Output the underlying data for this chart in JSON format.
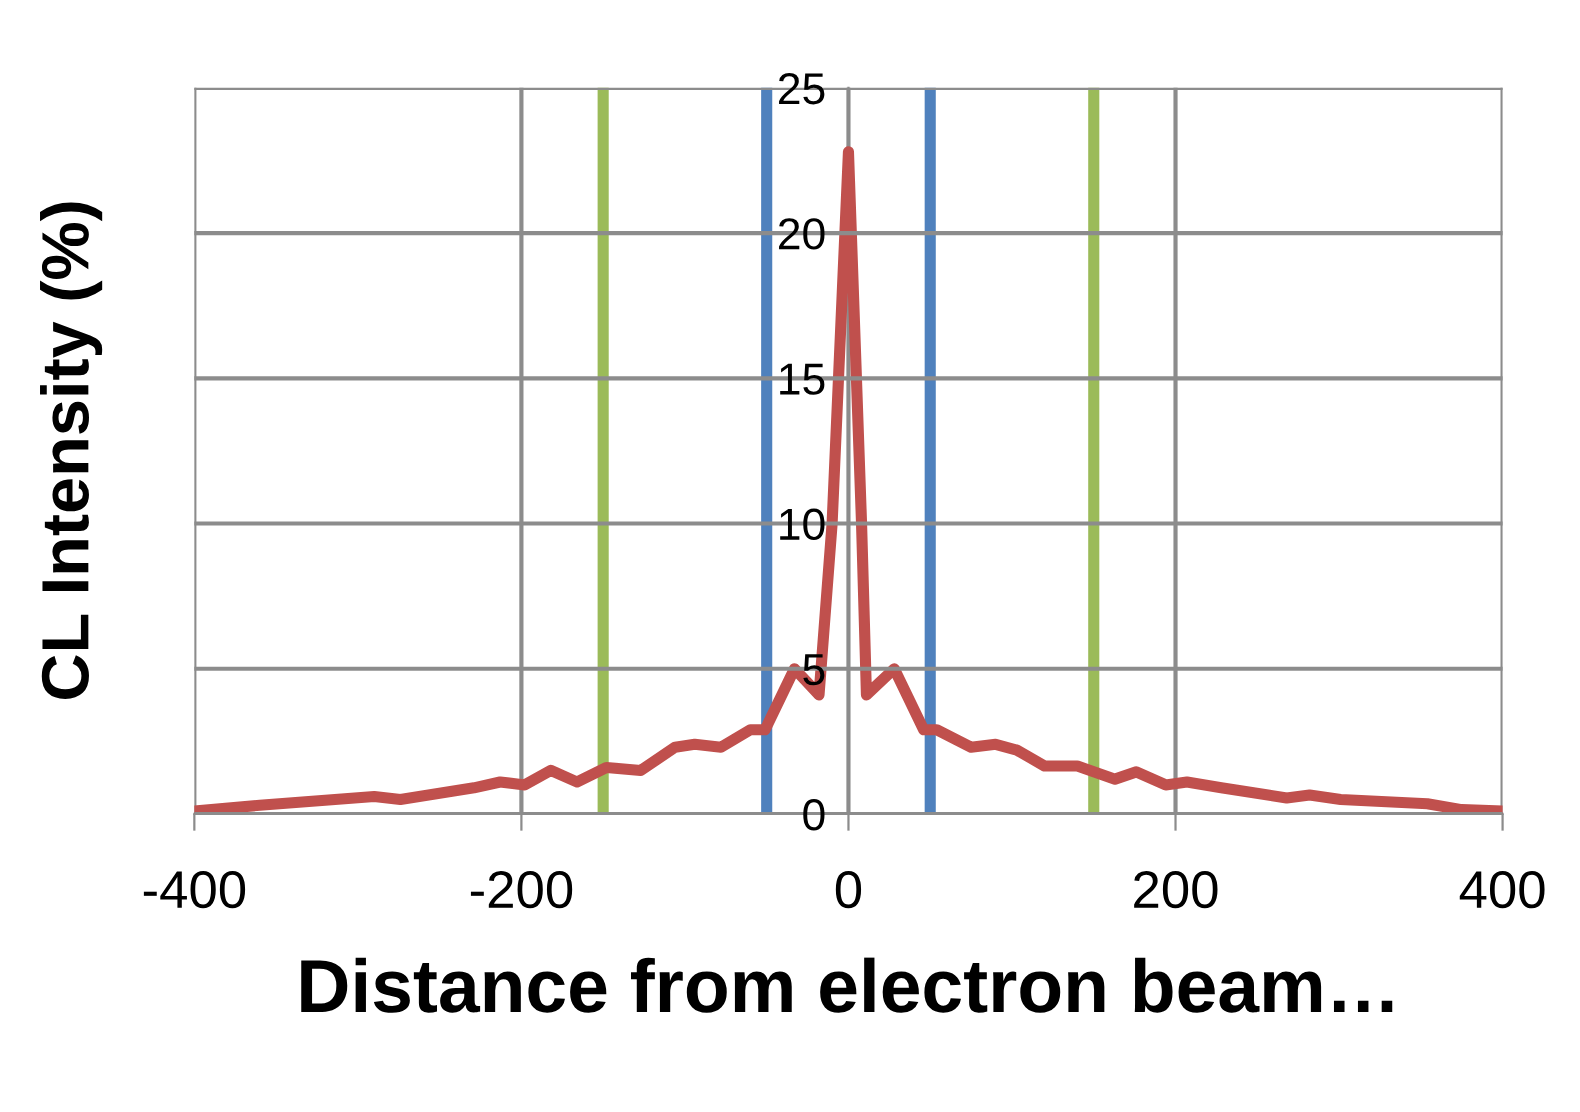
{
  "chart_data": {
    "type": "line",
    "xlabel": "Distance from electron beam…",
    "ylabel": "CL Intensity (%)",
    "series": [
      {
        "color": "#c0504d",
        "x": [
          -400,
          -360,
          -290,
          -274,
          -229,
          -213,
          -198,
          -182,
          -166,
          -148,
          -127,
          -106,
          -94,
          -78,
          -60,
          -51,
          -33,
          -18,
          -10,
          0,
          8,
          11,
          28,
          46,
          54,
          75,
          90,
          103,
          120,
          140,
          163,
          176,
          194,
          207,
          228,
          268,
          282,
          301,
          354,
          375,
          400
        ],
        "values": [
          0.1,
          0.3,
          0.6,
          0.5,
          0.9,
          1.1,
          1.0,
          1.5,
          1.1,
          1.6,
          1.5,
          2.3,
          2.4,
          2.3,
          2.9,
          2.9,
          5.0,
          4.1,
          10,
          22.8,
          10,
          4.1,
          5.0,
          2.9,
          2.9,
          2.3,
          2.4,
          2.2,
          1.65,
          1.65,
          1.2,
          1.45,
          1.0,
          1.1,
          0.9,
          0.55,
          0.65,
          0.5,
          0.35,
          0.15,
          0.1
        ]
      }
    ],
    "ref_lines": [
      {
        "axis": "x",
        "value": -150,
        "color": "#9bbb59"
      },
      {
        "axis": "x",
        "value": -50,
        "color": "#4f81bd"
      },
      {
        "axis": "x",
        "value": 50,
        "color": "#4f81bd"
      },
      {
        "axis": "x",
        "value": 150,
        "color": "#9bbb59"
      }
    ],
    "xlim": [
      -400,
      400
    ],
    "ylim": [
      0,
      25
    ],
    "xticks": [
      -400,
      -200,
      0,
      200,
      400
    ],
    "yticks": [
      0,
      5,
      10,
      15,
      20,
      25
    ],
    "grid": true,
    "marker": "none",
    "line_style": "solid",
    "legend": false
  }
}
